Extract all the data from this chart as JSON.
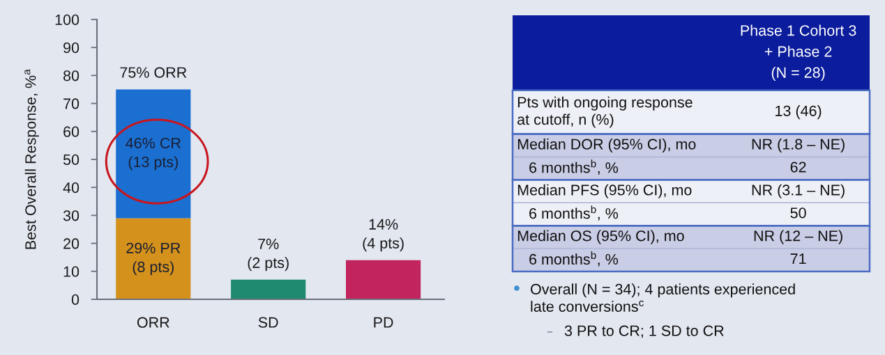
{
  "chart_data": [
    {
      "type": "bar",
      "categories": [
        "ORR",
        "SD",
        "PD"
      ],
      "stacked": true,
      "ylabel": "Best Overall Response, %$^{a}$",
      "ylim": [
        0,
        100
      ],
      "yticks": [
        0,
        10,
        20,
        30,
        40,
        50,
        60,
        70,
        80,
        90,
        100
      ],
      "series": [
        {
          "colors": [
            "#d4911c",
            "#1f8a6e",
            "#c2245e"
          ],
          "values": [
            29,
            7,
            14
          ],
          "value_labels": [
            "29% PR\n(8 pts)",
            null,
            null
          ]
        },
        {
          "color": "#1b6fd1",
          "values": [
            46,
            null,
            null
          ],
          "value_labels": [
            "46% CR\n(13 pts)",
            null,
            null
          ]
        }
      ],
      "totals": [
        "75% ORR",
        "7%\n(2 pts)",
        "14%\n(4 pts)"
      ]
    },
    {
      "type": "other",
      "categories": [
        "Phase 1 Cohort 3\n+ Phase 2\n(N = 28)"
      ],
      "y_categories": [
        "Pts with ongoing response\nat cutoff, n (%)",
        "Median DOR (95% CI), mo",
        "6 months$^{b}$, %",
        "Median PFS (95% CI), mo",
        "6 months$^{b}$, %",
        "Median OS (95% CI), mo",
        "6 months$^{b}$, %"
      ],
      "cell_labels": [
        [
          "13 (46)"
        ],
        [
          "NR (1.8 – NE)"
        ],
        [
          "62"
        ],
        [
          "NR (3.1 – NE)"
        ],
        [
          "50"
        ],
        [
          "NR (12 – NE)"
        ],
        [
          "71"
        ]
      ],
      "annotations": [
        "Overall (N = 34); 4 patients experienced\nlate conversions$^{c}$",
        "3 PR to CR; 1 SD to CR"
      ]
    }
  ]
}
